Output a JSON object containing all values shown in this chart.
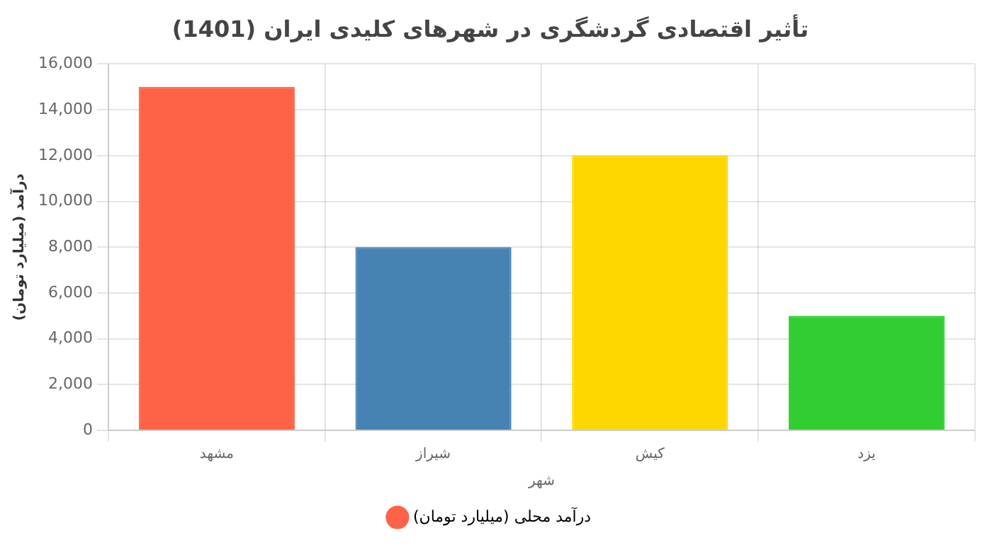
{
  "chart_data": {
    "type": "bar",
    "title": "تأثیر اقتصادی گردشگری در شهرهای کلیدی ایران (1401)",
    "xlabel": "شهر",
    "ylabel": "درآمد (میلیارد تومان)",
    "categories": [
      "مشهد",
      "شیراز",
      "کیش",
      "یزد"
    ],
    "series": [
      {
        "name": "درآمد محلی (میلیارد تومان)",
        "color": "#ff6347",
        "colors": [
          "#ff6347",
          "#4682b4",
          "#ffd700",
          "#32cd32"
        ],
        "values": [
          15000,
          8000,
          12000,
          5000
        ]
      }
    ],
    "ylim": [
      0,
      16000
    ],
    "yticks": [
      {
        "value": 0,
        "label": "0"
      },
      {
        "value": 2000,
        "label": "2,000"
      },
      {
        "value": 4000,
        "label": "4,000"
      },
      {
        "value": 6000,
        "label": "6,000"
      },
      {
        "value": 8000,
        "label": "8,000"
      },
      {
        "value": 10000,
        "label": "10,000"
      },
      {
        "value": 12000,
        "label": "12,000"
      },
      {
        "value": 14000,
        "label": "14,000"
      },
      {
        "value": 16000,
        "label": "16,000"
      }
    ],
    "grid": true,
    "legend": "bottom"
  }
}
